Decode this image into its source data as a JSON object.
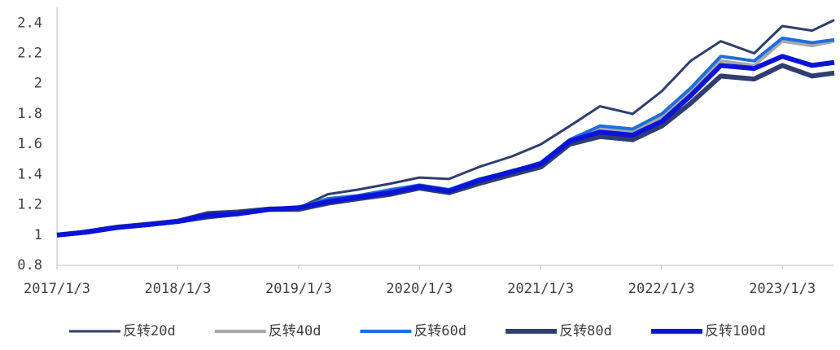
{
  "chart_data": {
    "type": "line",
    "x": [
      "2017/1/3",
      "2017/4/3",
      "2017/7/3",
      "2017/10/9",
      "2018/1/3",
      "2018/4/2",
      "2018/7/2",
      "2018/10/8",
      "2019/1/3",
      "2019/4/1",
      "2019/7/1",
      "2019/10/8",
      "2020/1/3",
      "2020/4/1",
      "2020/7/1",
      "2020/10/9",
      "2021/1/4",
      "2021/4/1",
      "2021/7/1",
      "2021/10/8",
      "2022/1/4",
      "2022/4/1",
      "2022/7/1",
      "2022/10/10",
      "2023/1/3",
      "2023/4/3",
      "2023/6/9"
    ],
    "xlim": [
      "2017/1/3",
      "2023/6/9"
    ],
    "xticks": [
      "2017/1/3",
      "2018/1/3",
      "2019/1/3",
      "2020/1/3",
      "2021/1/3",
      "2022/1/3",
      "2023/1/3"
    ],
    "ylim": [
      0.8,
      2.45
    ],
    "yticks": [
      0.8,
      1,
      1.2,
      1.4,
      1.6,
      1.8,
      2,
      2.2,
      2.4
    ],
    "legend": "bottom",
    "series": [
      {
        "name": "反转20d",
        "color": "#2f3e6e",
        "values": [
          1.0,
          1.03,
          1.06,
          1.08,
          1.1,
          1.15,
          1.16,
          1.18,
          1.18,
          1.27,
          1.3,
          1.34,
          1.38,
          1.37,
          1.45,
          1.52,
          1.6,
          1.72,
          1.85,
          1.8,
          1.95,
          2.15,
          2.28,
          2.2,
          2.38,
          2.35,
          2.42
        ]
      },
      {
        "name": "反转40d",
        "color": "#a9a9a9",
        "values": [
          1.0,
          1.02,
          1.05,
          1.07,
          1.09,
          1.13,
          1.14,
          1.17,
          1.18,
          1.24,
          1.26,
          1.29,
          1.33,
          1.3,
          1.37,
          1.42,
          1.48,
          1.62,
          1.7,
          1.68,
          1.78,
          1.95,
          2.15,
          2.12,
          2.28,
          2.25,
          2.28
        ]
      },
      {
        "name": "反转60d",
        "color": "#1f6fdb",
        "values": [
          1.0,
          1.02,
          1.05,
          1.07,
          1.09,
          1.13,
          1.14,
          1.17,
          1.18,
          1.24,
          1.26,
          1.3,
          1.33,
          1.3,
          1.37,
          1.42,
          1.48,
          1.63,
          1.72,
          1.7,
          1.8,
          1.97,
          2.18,
          2.15,
          2.3,
          2.27,
          2.29
        ]
      },
      {
        "name": "反转80d",
        "color": "#2f3e6e",
        "values": [
          1.0,
          1.02,
          1.05,
          1.07,
          1.09,
          1.12,
          1.14,
          1.17,
          1.17,
          1.21,
          1.24,
          1.27,
          1.31,
          1.28,
          1.34,
          1.4,
          1.45,
          1.6,
          1.65,
          1.63,
          1.72,
          1.87,
          2.05,
          2.03,
          2.12,
          2.05,
          2.07
        ]
      },
      {
        "name": "反转100d",
        "color": "#0a14d8",
        "values": [
          1.0,
          1.02,
          1.05,
          1.07,
          1.09,
          1.13,
          1.14,
          1.17,
          1.18,
          1.22,
          1.25,
          1.28,
          1.32,
          1.29,
          1.36,
          1.42,
          1.47,
          1.62,
          1.68,
          1.66,
          1.75,
          1.92,
          2.12,
          2.1,
          2.18,
          2.12,
          2.14
        ]
      }
    ]
  }
}
